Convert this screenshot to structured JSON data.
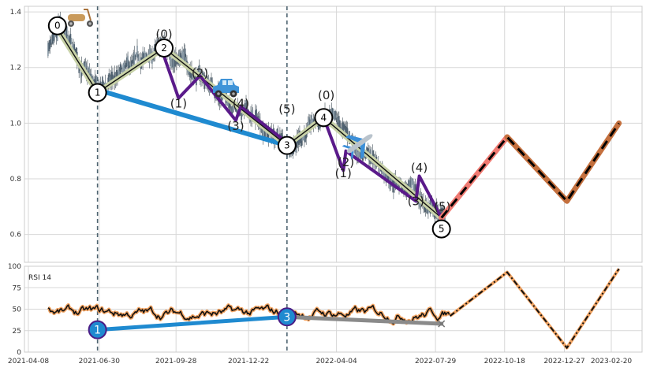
{
  "colors": {
    "purple": "#5a1a8a",
    "blue": "#1f8ad0",
    "olive": "#c8d2a8",
    "projection_salmon": "#f07a72",
    "projection_brown": "#c4703e",
    "vline": "#4e6470",
    "rsi_outline": "#f2a463",
    "grid": "#d7d7d7"
  },
  "icons": [
    "scooter-icon",
    "car-icon",
    "airplane-icon"
  ],
  "chart_data": [
    {
      "type": "line",
      "x_ticks": [
        "2021-04-08",
        "2021-06-30",
        "2021-09-28",
        "2021-12-22",
        "2022-04-04",
        "2022-07-29",
        "2022-10-18",
        "2022-12-27",
        "2023-02-20"
      ],
      "y_ticks": [
        "0.6",
        "0.8",
        "1.0",
        "1.2",
        "1.4"
      ],
      "ylim": [
        0.5,
        1.42
      ],
      "grid": true,
      "price_candles_approx": {
        "start": "2021-05-01",
        "end": "2022-08-10",
        "range_start": [
          1.25,
          1.31
        ],
        "range_end": [
          0.66,
          0.76
        ]
      },
      "wave_points": [
        {
          "label": "0",
          "date": "2021-05-12",
          "value": 1.35
        },
        {
          "label": "1",
          "date": "2021-06-28",
          "value": 1.11
        },
        {
          "label": "2",
          "date": "2021-09-14",
          "value": 1.27
        },
        {
          "label": "3",
          "date": "2022-02-05",
          "value": 0.92
        },
        {
          "label": "4",
          "date": "2022-03-20",
          "value": 1.02
        },
        {
          "label": "5",
          "date": "2022-08-05",
          "value": 0.62
        }
      ],
      "sub_wave_labels": [
        {
          "label": "(0)",
          "date": "2021-09-14",
          "value": 1.32
        },
        {
          "label": "(1)",
          "date": "2021-10-01",
          "value": 1.07
        },
        {
          "label": "(2)",
          "date": "2021-10-26",
          "value": 1.18
        },
        {
          "label": "(4)",
          "date": "2021-12-13",
          "value": 1.07
        },
        {
          "label": "(3)",
          "date": "2021-12-07",
          "value": 0.99
        },
        {
          "label": "(5)",
          "date": "2022-02-05",
          "value": 1.05
        },
        {
          "label": "(0)",
          "date": "2022-03-23",
          "value": 1.1
        },
        {
          "label": "(2)",
          "date": "2022-04-15",
          "value": 0.86
        },
        {
          "label": "(1)",
          "date": "2022-04-12",
          "value": 0.82
        },
        {
          "label": "(4)",
          "date": "2022-07-10",
          "value": 0.84
        },
        {
          "label": "(3)",
          "date": "2022-07-06",
          "value": 0.72
        },
        {
          "label": "(5)",
          "date": "2022-08-06",
          "value": 0.7
        }
      ],
      "zigzag_olive": [
        [
          "2021-05-12",
          1.34
        ],
        [
          "2021-06-28",
          1.11
        ],
        [
          "2021-09-14",
          1.27
        ],
        [
          "2022-02-05",
          0.92
        ],
        [
          "2022-03-20",
          1.02
        ],
        [
          "2022-08-05",
          0.66
        ]
      ],
      "purple_subwave_1": [
        [
          "2021-09-14",
          1.24
        ],
        [
          "2021-10-01",
          1.09
        ],
        [
          "2021-10-26",
          1.17
        ],
        [
          "2021-12-07",
          1.01
        ],
        [
          "2021-12-13",
          1.06
        ],
        [
          "2022-02-05",
          0.93
        ]
      ],
      "purple_subwave_2": [
        [
          "2022-03-20",
          1.02
        ],
        [
          "2022-04-12",
          0.83
        ],
        [
          "2022-04-15",
          0.9
        ],
        [
          "2022-07-06",
          0.72
        ],
        [
          "2022-07-10",
          0.81
        ],
        [
          "2022-08-05",
          0.66
        ]
      ],
      "blue_line": [
        [
          "2021-06-28",
          1.12
        ],
        [
          "2022-02-05",
          0.92
        ]
      ],
      "projection": [
        [
          "2022-08-05",
          0.66
        ],
        [
          "2022-10-21",
          0.95
        ],
        [
          "2022-12-30",
          0.72
        ],
        [
          "2023-03-01",
          1.0
        ]
      ],
      "vertical_lines": [
        "2021-06-28",
        "2022-02-05"
      ]
    },
    {
      "type": "line",
      "title": "RSI 14",
      "y_ticks": [
        "0",
        "25",
        "50",
        "75",
        "100"
      ],
      "ylim": [
        0,
        100
      ],
      "grid": true,
      "rsi_series": {
        "start": "2021-05-01",
        "end": "2022-08-15",
        "approx_level": 45,
        "range": [
          31,
          62
        ]
      },
      "wave_markers": [
        {
          "label": "1",
          "date": "2021-06-28",
          "value": 26
        },
        {
          "label": "3",
          "date": "2022-02-05",
          "value": 41
        }
      ],
      "blue_divergence": [
        [
          "2021-06-28",
          26
        ],
        [
          "2022-02-05",
          41
        ]
      ],
      "gray_line": [
        [
          "2022-02-05",
          41
        ],
        [
          "2022-08-05",
          33
        ]
      ],
      "projection": [
        [
          "2022-08-15",
          42
        ],
        [
          "2022-10-21",
          93
        ],
        [
          "2022-12-30",
          5
        ],
        [
          "2023-03-01",
          97
        ]
      ]
    }
  ]
}
